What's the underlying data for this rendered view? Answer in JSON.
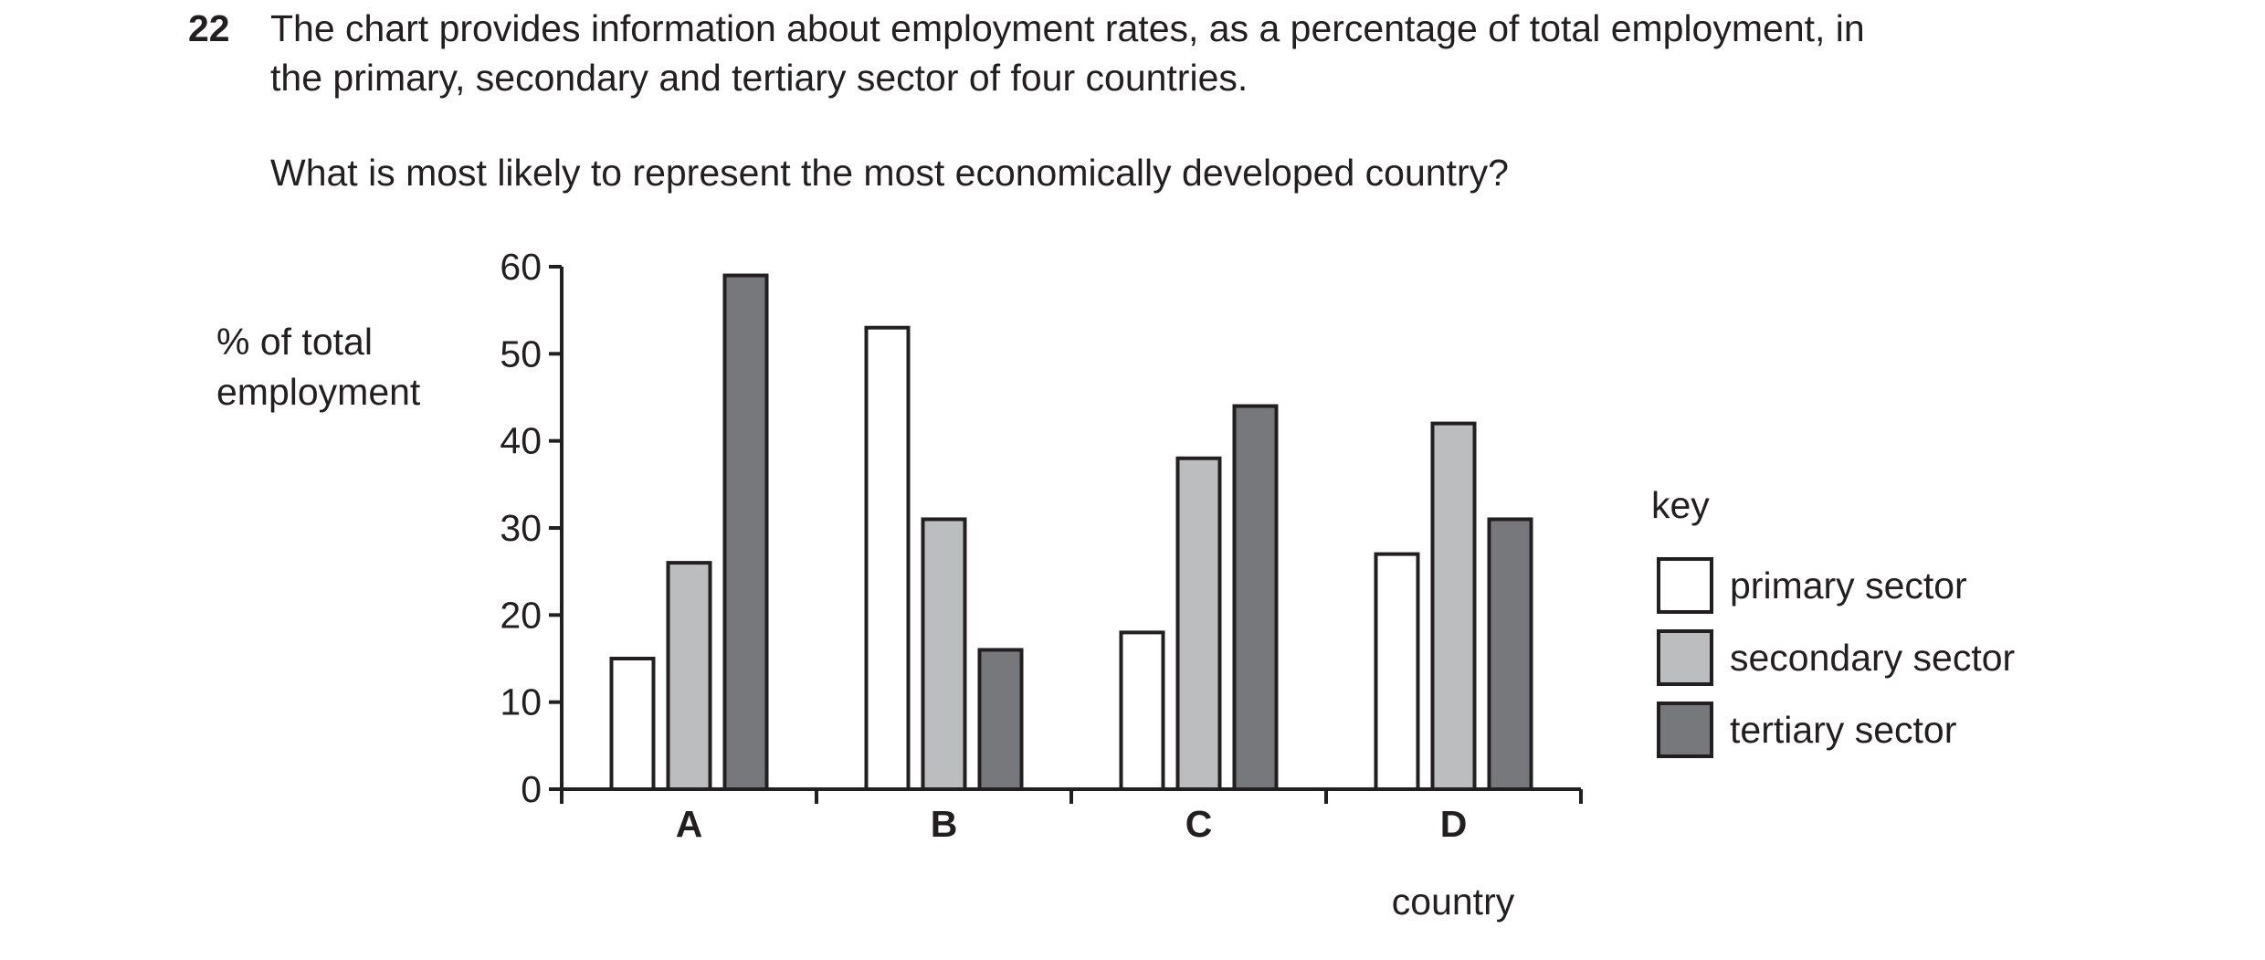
{
  "question": {
    "number": "22",
    "text_line1": "The chart provides information about employment rates, as a percentage of total employment, in",
    "text_line2": "the primary, secondary and tertiary sector of four countries.",
    "ask": "What is most likely to represent the most economically developed country?"
  },
  "chart_data": {
    "type": "bar",
    "categories": [
      "A",
      "B",
      "C",
      "D"
    ],
    "series": [
      {
        "name": "primary sector",
        "values": [
          15,
          53,
          18,
          27
        ],
        "color": "#ffffff"
      },
      {
        "name": "secondary sector",
        "values": [
          26,
          31,
          38,
          42
        ],
        "color": "#bcbdbf"
      },
      {
        "name": "tertiary sector",
        "values": [
          59,
          16,
          44,
          31
        ],
        "color": "#77787b"
      }
    ],
    "ylabel_line1": "% of total",
    "ylabel_line2": "employment",
    "xlabel": "country",
    "ylim": [
      0,
      60
    ],
    "yticks": [
      0,
      10,
      20,
      30,
      40,
      50,
      60
    ],
    "legend_title": "key",
    "legend_position": "right",
    "grid": false,
    "stroke_color": "#231f20"
  }
}
